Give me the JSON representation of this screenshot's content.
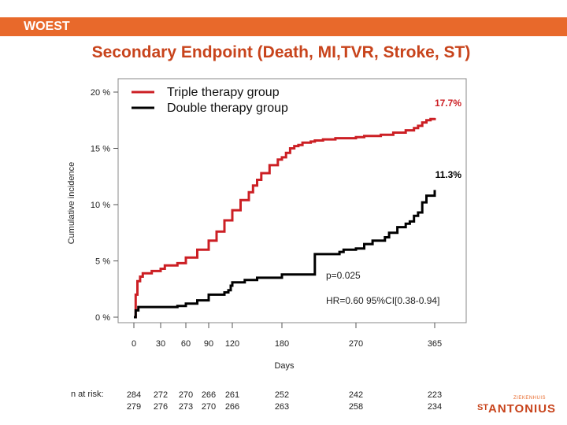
{
  "header": {
    "label": "WOEST"
  },
  "title": "Secondary Endpoint (Death, MI,TVR, Stroke, ST)",
  "colors": {
    "accent": "#e8692b",
    "title": "#c8441c",
    "triple": "#cc1f24",
    "double": "#000000"
  },
  "chart_data": {
    "type": "line",
    "ylabel": "Cumulative incidence",
    "xlabel": "Days",
    "y_ticks": [
      "20 %",
      "15 %",
      "10 %",
      "5 %",
      "0 %"
    ],
    "x_ticks": [
      "0",
      "30",
      "60",
      "90",
      "120",
      "180",
      "270",
      "365"
    ],
    "x_tick_values": [
      0,
      30,
      60,
      90,
      120,
      180,
      270,
      365
    ],
    "xlim": [
      0,
      365
    ],
    "ylim": [
      0,
      20
    ],
    "legend": [
      "Triple therapy group",
      "Double therapy group"
    ],
    "legend_position": "top-left",
    "series": [
      {
        "name": "Triple therapy group",
        "color": "#cc1f24",
        "end_label": "17.7%",
        "x": [
          0,
          2,
          4,
          7,
          10,
          20,
          30,
          35,
          50,
          60,
          75,
          90,
          100,
          110,
          120,
          130,
          140,
          145,
          150,
          155,
          165,
          175,
          180,
          185,
          190,
          195,
          200,
          205,
          215,
          220,
          230,
          245,
          270,
          280,
          300,
          315,
          330,
          340,
          345,
          350,
          355,
          360,
          365
        ],
        "y": [
          0,
          2.0,
          3.2,
          3.6,
          3.9,
          4.1,
          4.3,
          4.6,
          4.8,
          5.3,
          6.0,
          6.8,
          7.6,
          8.6,
          9.5,
          10.4,
          11.1,
          11.7,
          12.2,
          12.8,
          13.5,
          14.0,
          14.2,
          14.6,
          15.0,
          15.2,
          15.3,
          15.5,
          15.6,
          15.7,
          15.8,
          15.9,
          16.0,
          16.1,
          16.2,
          16.4,
          16.6,
          16.8,
          17.0,
          17.3,
          17.5,
          17.6,
          17.7
        ]
      },
      {
        "name": "Double therapy group",
        "color": "#000000",
        "end_label": "11.3%",
        "x": [
          0,
          2,
          5,
          20,
          50,
          60,
          75,
          90,
          110,
          115,
          118,
          120,
          135,
          150,
          180,
          220,
          250,
          255,
          270,
          280,
          290,
          305,
          310,
          320,
          330,
          335,
          340,
          345,
          350,
          355,
          365
        ],
        "y": [
          0,
          0.6,
          0.9,
          0.9,
          1.0,
          1.2,
          1.5,
          2.0,
          2.2,
          2.4,
          2.8,
          3.1,
          3.3,
          3.5,
          3.8,
          5.6,
          5.8,
          6.0,
          6.1,
          6.5,
          6.8,
          7.1,
          7.5,
          8.0,
          8.3,
          8.5,
          9.0,
          9.3,
          10.2,
          10.8,
          11.3
        ]
      }
    ],
    "annotations": {
      "p_value": "p=0.025",
      "hr": "HR=0.60  95%CI[0.38-0.94]"
    },
    "at_risk": {
      "label": "n at risk:",
      "triple": [
        "284",
        "272",
        "270",
        "266",
        "261",
        "252",
        "242",
        "223"
      ],
      "double": [
        "279",
        "276",
        "273",
        "270",
        "266",
        "263",
        "258",
        "234"
      ]
    }
  },
  "logo": {
    "tagline": "ZIEKENHUIS",
    "prefix": "ST",
    "name": "ANTONIUS"
  }
}
